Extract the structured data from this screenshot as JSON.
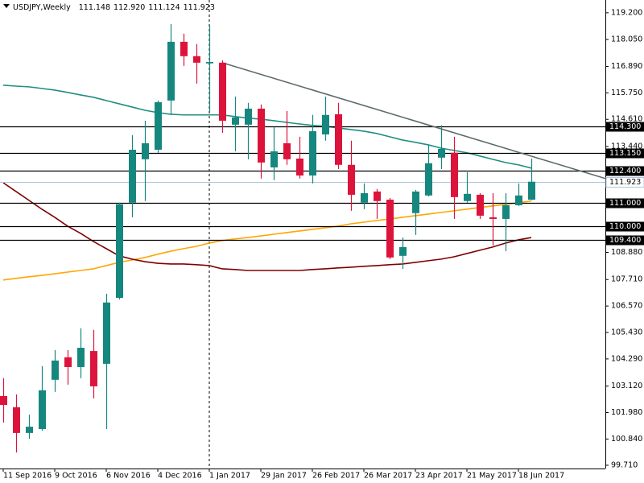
{
  "chart_data": {
    "type": "candlestick",
    "header": {
      "symbol": "USDJPY,Weekly",
      "ohlc": [
        "111.148",
        "112.920",
        "111.124",
        "111.923"
      ]
    },
    "categories": [
      "11 Sep 2016",
      null,
      null,
      null,
      "9 Oct 2016",
      null,
      null,
      null,
      "6 Nov 2016",
      null,
      null,
      null,
      "4 Dec 2016",
      null,
      null,
      null,
      "1 Jan 2017",
      null,
      null,
      null,
      "29 Jan 2017",
      null,
      null,
      null,
      "26 Feb 2017",
      null,
      null,
      null,
      "26 Mar 2017",
      null,
      null,
      null,
      "23 Apr 2017",
      null,
      null,
      null,
      "21 May 2017",
      null,
      null,
      null,
      "18 Jun 2017",
      null
    ],
    "open": [
      102.69,
      102.21,
      101.1,
      101.27,
      103.39,
      104.36,
      103.94,
      104.63,
      104.08,
      106.92,
      111.02,
      112.89,
      113.3,
      115.42,
      117.95,
      117.33,
      117.02,
      117.05,
      114.38,
      114.38,
      115.07,
      112.54,
      113.58,
      112.92,
      112.19,
      113.96,
      114.83,
      112.65,
      111.02,
      111.5,
      111.15,
      108.73,
      110.57,
      111.33,
      112.96,
      113.17,
      111.09,
      111.36,
      110.39,
      110.32,
      110.91,
      111.148
    ],
    "high": [
      103.46,
      102.76,
      101.89,
      103.98,
      104.67,
      104.67,
      105.61,
      105.54,
      107.1,
      111.02,
      113.93,
      114.55,
      115.42,
      118.71,
      118.3,
      117.85,
      118.65,
      117.15,
      115.59,
      115.32,
      115.25,
      114.28,
      114.97,
      113.86,
      114.8,
      115.59,
      115.32,
      113.69,
      111.85,
      111.61,
      111.22,
      109.52,
      111.57,
      113.51,
      114.35,
      113.86,
      112.33,
      111.43,
      111.43,
      111.43,
      111.85,
      112.92
    ],
    "low": [
      101.55,
      100.26,
      100.85,
      101.2,
      102.87,
      103.18,
      103.46,
      102.59,
      101.27,
      106.85,
      110.39,
      111.09,
      113.17,
      114.8,
      116.91,
      116.15,
      114.9,
      114.03,
      113.23,
      112.89,
      112.06,
      111.99,
      112.65,
      112.06,
      111.85,
      113.69,
      112.47,
      110.67,
      110.74,
      110.32,
      108.59,
      108.17,
      109.63,
      111.29,
      112.47,
      110.32,
      111.02,
      110.32,
      109.18,
      108.93,
      110.88,
      111.124
    ],
    "close": [
      102.31,
      101.1,
      101.37,
      102.94,
      104.22,
      103.94,
      104.77,
      103.11,
      106.72,
      110.95,
      113.3,
      113.58,
      115.35,
      117.95,
      117.33,
      117.05,
      117.08,
      114.55,
      114.69,
      115.07,
      112.75,
      113.23,
      112.89,
      112.19,
      114.1,
      114.8,
      112.65,
      111.36,
      111.43,
      111.09,
      108.66,
      109.11,
      111.5,
      112.72,
      113.34,
      111.26,
      111.4,
      110.46,
      110.32,
      110.91,
      111.33,
      111.923
    ],
    "up_color": "#16877f",
    "down_color": "#dc143c",
    "moving_averages": [
      {
        "color": "#1f8f82",
        "values": [
          116.08,
          116.04,
          116.01,
          115.94,
          115.87,
          115.77,
          115.66,
          115.56,
          115.42,
          115.28,
          115.14,
          115.0,
          114.9,
          114.83,
          114.8,
          114.8,
          114.8,
          114.8,
          114.73,
          114.66,
          114.62,
          114.55,
          114.48,
          114.41,
          114.35,
          114.31,
          114.24,
          114.17,
          114.1,
          114.0,
          113.86,
          113.72,
          113.62,
          113.51,
          113.37,
          113.27,
          113.17,
          113.03,
          112.89,
          112.75,
          112.65,
          112.51
        ]
      },
      {
        "color": "#ffa500",
        "values": [
          107.69,
          107.76,
          107.83,
          107.89,
          107.96,
          108.03,
          108.1,
          108.17,
          108.31,
          108.45,
          108.55,
          108.66,
          108.8,
          108.93,
          109.04,
          109.14,
          109.28,
          109.39,
          109.46,
          109.52,
          109.59,
          109.66,
          109.73,
          109.8,
          109.87,
          109.94,
          110.01,
          110.11,
          110.18,
          110.25,
          110.32,
          110.39,
          110.46,
          110.53,
          110.6,
          110.67,
          110.74,
          110.81,
          110.88,
          110.95,
          111.02,
          111.09
        ]
      },
      {
        "color": "#800000",
        "values": [
          111.88,
          111.5,
          111.12,
          110.74,
          110.39,
          110.01,
          109.7,
          109.35,
          109.04,
          108.73,
          108.59,
          108.48,
          108.41,
          108.38,
          108.38,
          108.35,
          108.31,
          108.17,
          108.14,
          108.1,
          108.1,
          108.1,
          108.1,
          108.1,
          108.14,
          108.17,
          108.21,
          108.24,
          108.28,
          108.31,
          108.35,
          108.38,
          108.45,
          108.52,
          108.59,
          108.69,
          108.83,
          108.97,
          109.11,
          109.28,
          109.42,
          109.52
        ]
      }
    ],
    "levels": [
      {
        "value": 114.3,
        "label": "114.300"
      },
      {
        "value": 113.15,
        "label": "113.150"
      },
      {
        "value": 112.4,
        "label": "112.400"
      },
      {
        "value": 111.0,
        "label": "111.000"
      },
      {
        "value": 110.0,
        "label": "110.000"
      },
      {
        "value": 109.4,
        "label": "109.400"
      }
    ],
    "level_color": "#000000",
    "bid": {
      "value": 111.923,
      "label": "111.923"
    },
    "bid_color": "#b0c4de",
    "trendline": {
      "values": [
        117.05,
        112.06
      ],
      "color": "#5f6b6b"
    },
    "ylim": [
      99.57,
      119.75
    ],
    "yticks": [
      {
        "value": 119.2,
        "label": "119.200"
      },
      {
        "value": 118.05,
        "label": "118.050"
      },
      {
        "value": 116.89,
        "label": "116.890"
      },
      {
        "value": 115.75,
        "label": "115.750"
      },
      {
        "value": 114.61,
        "label": "114.610"
      },
      {
        "value": 113.44,
        "label": "113.440"
      },
      {
        "value": 108.88,
        "label": "108.880"
      },
      {
        "value": 107.71,
        "label": "107.710"
      },
      {
        "value": 106.57,
        "label": "106.570"
      },
      {
        "value": 105.43,
        "label": "105.430"
      },
      {
        "value": 104.29,
        "label": "104.290"
      },
      {
        "value": 103.12,
        "label": "103.120"
      },
      {
        "value": 101.98,
        "label": "101.980"
      },
      {
        "value": 100.84,
        "label": "100.840"
      },
      {
        "value": 99.71,
        "label": "99.710"
      }
    ],
    "grid": false
  }
}
